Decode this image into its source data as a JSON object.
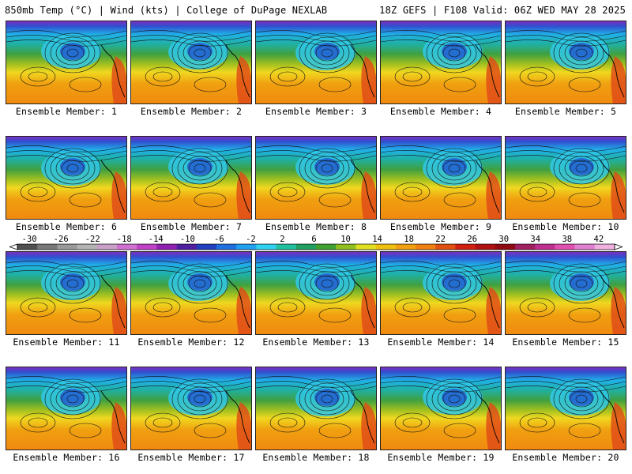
{
  "header": {
    "left_title": "850mb Temp (°C) | Wind (kts) | College of DuPage NEXLAB",
    "right_title": "18Z GEFS | F108 Valid: 06Z WED MAY 28 2025"
  },
  "members": [
    {
      "label": "Ensemble Member: 1"
    },
    {
      "label": "Ensemble Member: 2"
    },
    {
      "label": "Ensemble Member: 3"
    },
    {
      "label": "Ensemble Member: 4"
    },
    {
      "label": "Ensemble Member: 5"
    },
    {
      "label": "Ensemble Member: 6"
    },
    {
      "label": "Ensemble Member: 7"
    },
    {
      "label": "Ensemble Member: 8"
    },
    {
      "label": "Ensemble Member: 9"
    },
    {
      "label": "Ensemble Member: 10"
    },
    {
      "label": "Ensemble Member: 11"
    },
    {
      "label": "Ensemble Member: 12"
    },
    {
      "label": "Ensemble Member: 13"
    },
    {
      "label": "Ensemble Member: 14"
    },
    {
      "label": "Ensemble Member: 15"
    },
    {
      "label": "Ensemble Member: 16"
    },
    {
      "label": "Ensemble Member: 17"
    },
    {
      "label": "Ensemble Member: 18"
    },
    {
      "label": "Ensemble Member: 19"
    },
    {
      "label": "Ensemble Member: 20"
    }
  ],
  "colorbar": {
    "ticks": [
      "-30",
      "-26",
      "-22",
      "-18",
      "-14",
      "-10",
      "-6",
      "-2",
      "2",
      "6",
      "10",
      "14",
      "18",
      "22",
      "26",
      "30",
      "34",
      "38",
      "42"
    ],
    "colors": [
      "#505050",
      "#787878",
      "#9a9a9a",
      "#b4b4b4",
      "#c8a0c8",
      "#d070d0",
      "#c040c8",
      "#9020b0",
      "#5020a0",
      "#2040c0",
      "#2070e0",
      "#20a0f0",
      "#30d0f0",
      "#20c0a0",
      "#20a060",
      "#40a030",
      "#90c020",
      "#e0e020",
      "#f0c010",
      "#f0a010",
      "#f08010",
      "#e05010",
      "#d02010",
      "#b01010",
      "#900810",
      "#a02060",
      "#c03090",
      "#e050b0",
      "#e080d0",
      "#f0b0e0"
    ]
  }
}
